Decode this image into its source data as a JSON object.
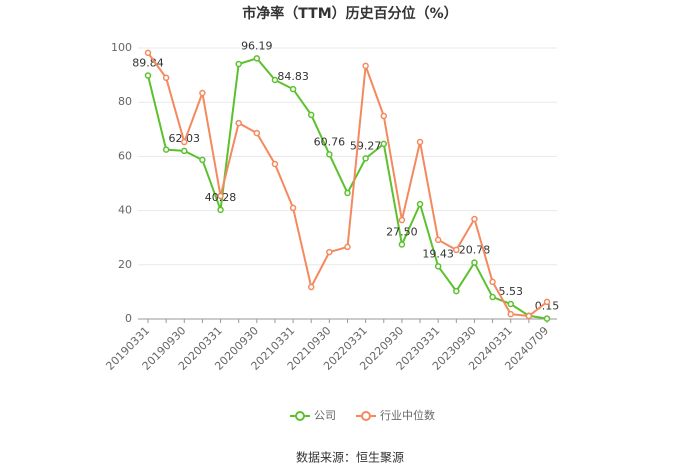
{
  "chart_data": {
    "type": "line",
    "title": "市净率（TTM）历史百分位（%）",
    "categories": [
      "20190331",
      null,
      "20190930",
      null,
      "20200331",
      null,
      "20200930",
      null,
      "20210331",
      null,
      "20210930",
      null,
      "20220331",
      null,
      "20220930",
      null,
      "20230331",
      null,
      "20230930",
      null,
      "20240331",
      null,
      "20240709"
    ],
    "series": [
      {
        "name": "公司",
        "color": "#5cc12e",
        "values": [
          89.84,
          62.5,
          62.03,
          58.7,
          40.28,
          94.1,
          96.19,
          88.2,
          84.83,
          75.3,
          60.76,
          46.5,
          59.27,
          64.6,
          27.5,
          42.4,
          19.43,
          10.3,
          20.78,
          8.1,
          5.53,
          1.2,
          0.15
        ],
        "value_labels": [
          "89.84",
          null,
          "62.03",
          null,
          "40.28",
          null,
          "96.19",
          null,
          "84.83",
          null,
          "60.76",
          null,
          "59.27",
          null,
          "27.50",
          null,
          "19.43",
          null,
          "20.78",
          null,
          "5.53",
          null,
          "0.15"
        ]
      },
      {
        "name": "行业中位数",
        "color": "#f4895f",
        "values": [
          98.2,
          89,
          65.3,
          83.4,
          45.4,
          72.3,
          68.6,
          57.2,
          41,
          11.8,
          24.7,
          26.6,
          93.4,
          74.9,
          36.5,
          65.3,
          29.2,
          25.5,
          36.9,
          13.7,
          1.8,
          1.1,
          6.3
        ]
      }
    ],
    "ylim": [
      0,
      100
    ],
    "yticks": [
      0,
      20,
      40,
      60,
      80,
      100
    ],
    "grid": true,
    "legend": "bottom",
    "source": "数据来源：恒生聚源"
  }
}
